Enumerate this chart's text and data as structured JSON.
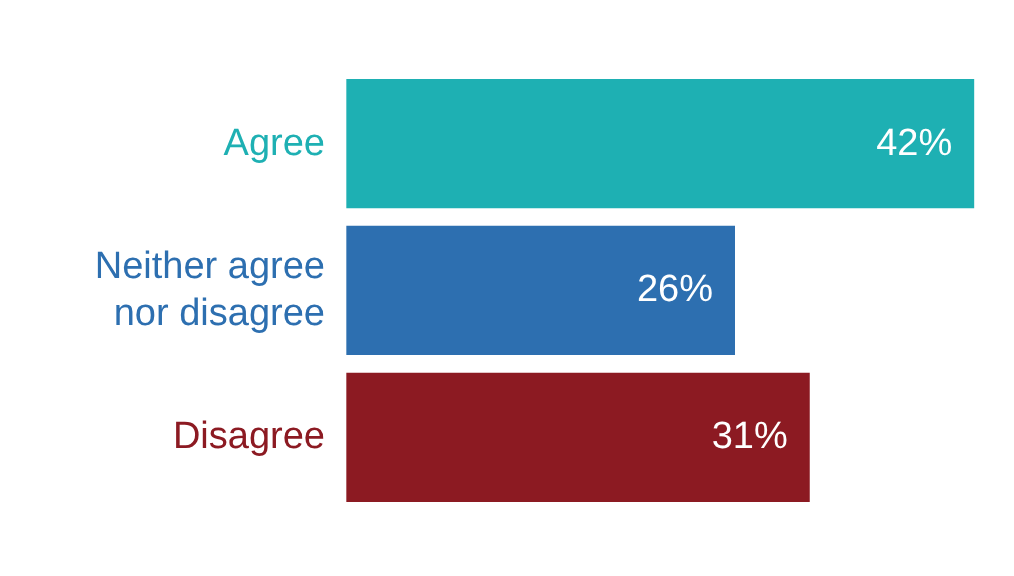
{
  "chart_data": {
    "type": "bar",
    "orientation": "horizontal",
    "categories": [
      "Agree",
      "Neither agree nor disagree",
      "Disagree"
    ],
    "values": [
      42,
      26,
      31
    ],
    "colors": [
      "#1eb0b3",
      "#2d6fb0",
      "#8c1a22"
    ],
    "value_labels": [
      "42%",
      "26%",
      "31%"
    ],
    "tick_labels": "y",
    "grid": false
  }
}
